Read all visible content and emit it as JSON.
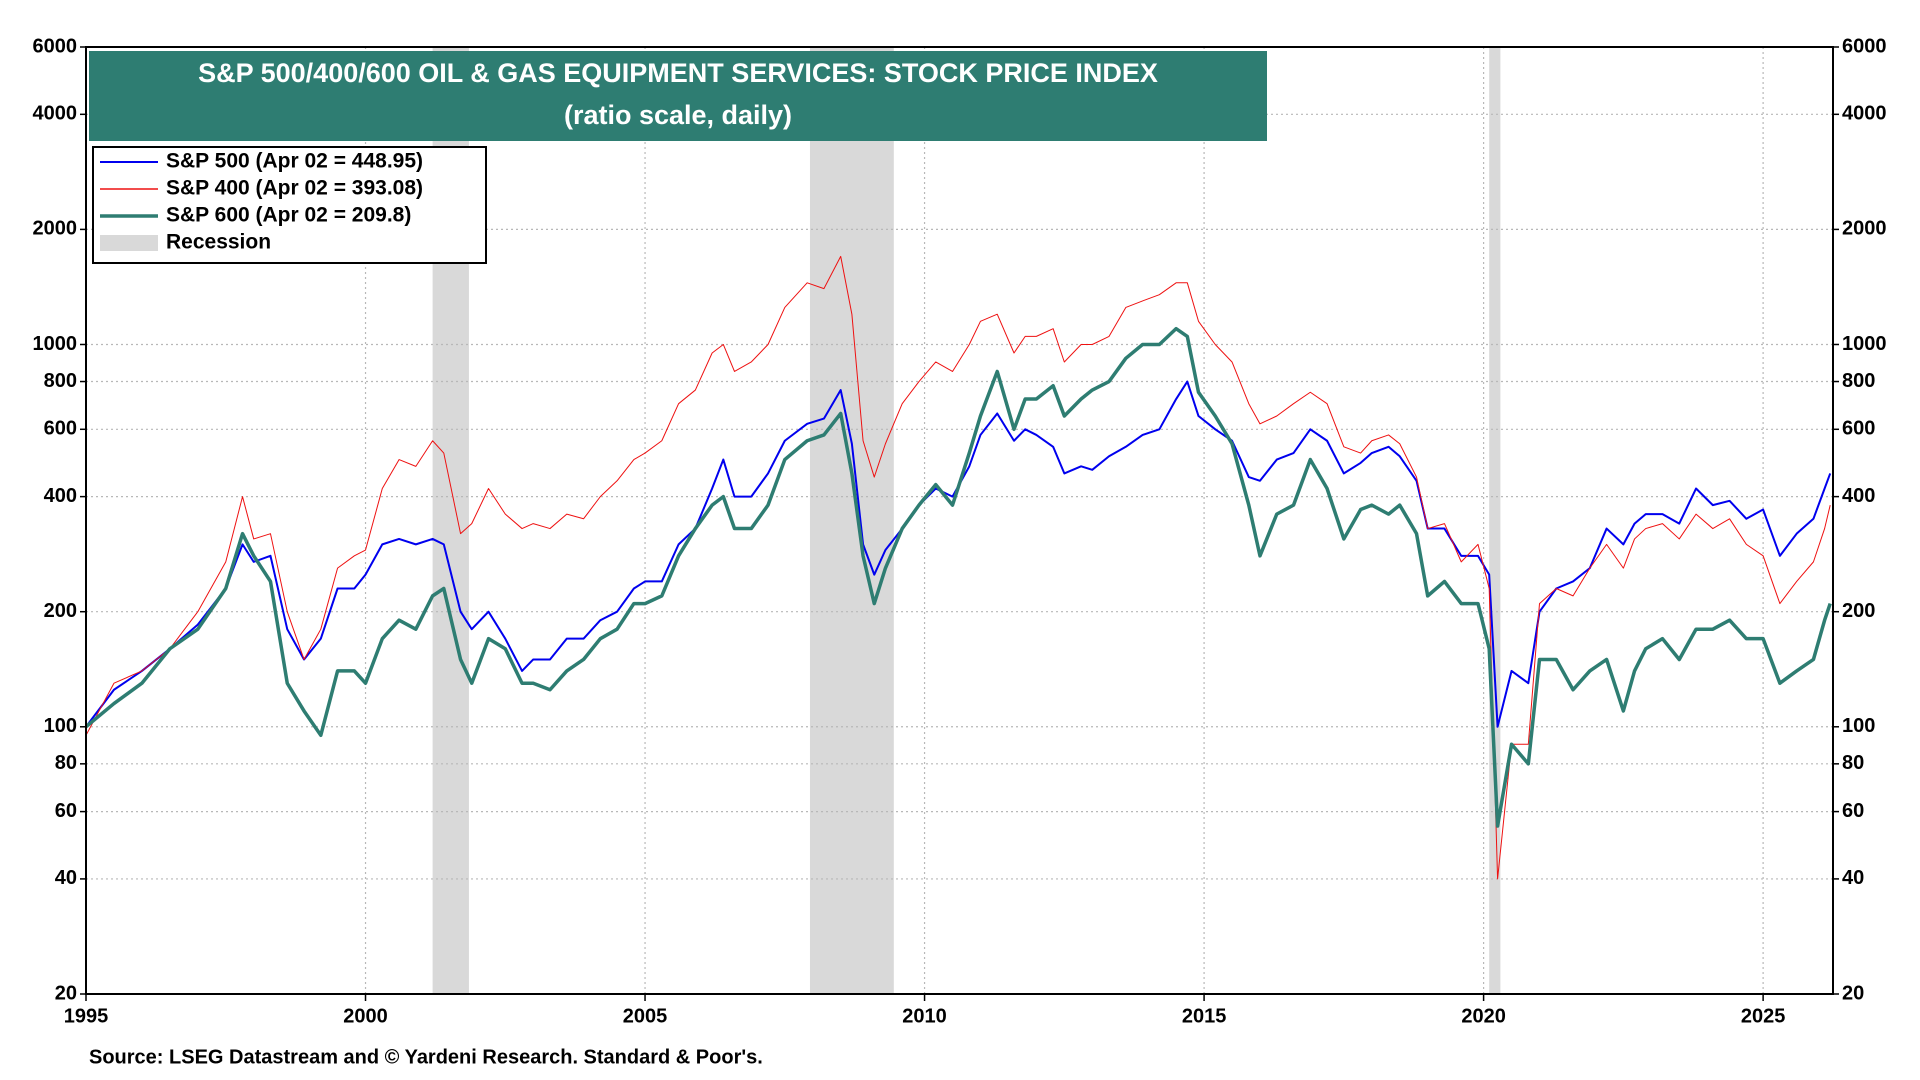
{
  "chart_data": {
    "type": "line",
    "title": "S&P 500/400/600 OIL & GAS EQUIPMENT SERVICES: STOCK PRICE INDEX",
    "subtitle": "(ratio scale, daily)",
    "source": "Source: LSEG Datastream and © Yardeni Research. Standard & Poor's.",
    "log_scale": true,
    "grid": true,
    "legend_position": "upper-left",
    "xlim": [
      1995,
      2026.25
    ],
    "xticks": [
      1995,
      2000,
      2005,
      2010,
      2015,
      2020,
      2025
    ],
    "ylim": [
      20,
      6000
    ],
    "yticks": [
      20,
      40,
      60,
      80,
      100,
      200,
      400,
      600,
      800,
      1000,
      2000,
      4000,
      6000
    ],
    "recession": {
      "name": "Recession",
      "color": "#d9d9d9",
      "periods": [
        [
          2001.2,
          2001.85
        ],
        [
          2007.95,
          2009.45
        ],
        [
          2020.1,
          2020.3
        ]
      ]
    },
    "x": [
      1995.0,
      1995.5,
      1996.0,
      1996.5,
      1997.0,
      1997.5,
      1997.8,
      1998.0,
      1998.3,
      1998.6,
      1998.9,
      1999.2,
      1999.5,
      1999.8,
      2000.0,
      2000.3,
      2000.6,
      2000.9,
      2001.2,
      2001.4,
      2001.7,
      2001.9,
      2002.2,
      2002.5,
      2002.8,
      2003.0,
      2003.3,
      2003.6,
      2003.9,
      2004.2,
      2004.5,
      2004.8,
      2005.0,
      2005.3,
      2005.6,
      2005.9,
      2006.2,
      2006.4,
      2006.6,
      2006.9,
      2007.2,
      2007.5,
      2007.9,
      2008.2,
      2008.5,
      2008.7,
      2008.9,
      2009.1,
      2009.3,
      2009.6,
      2009.9,
      2010.2,
      2010.5,
      2010.8,
      2011.0,
      2011.3,
      2011.6,
      2011.8,
      2012.0,
      2012.3,
      2012.5,
      2012.8,
      2013.0,
      2013.3,
      2013.6,
      2013.9,
      2014.2,
      2014.5,
      2014.7,
      2014.9,
      2015.2,
      2015.5,
      2015.8,
      2016.0,
      2016.3,
      2016.6,
      2016.9,
      2017.2,
      2017.5,
      2017.8,
      2018.0,
      2018.3,
      2018.5,
      2018.8,
      2019.0,
      2019.3,
      2019.6,
      2019.9,
      2020.1,
      2020.25,
      2020.5,
      2020.8,
      2021.0,
      2021.3,
      2021.6,
      2021.9,
      2022.2,
      2022.5,
      2022.7,
      2022.9,
      2023.2,
      2023.5,
      2023.8,
      2024.1,
      2024.4,
      2024.7,
      2025.0,
      2025.3,
      2025.6,
      2025.9,
      2026.1,
      2026.2
    ],
    "series": [
      {
        "name": "S&P 500 (Apr 02 = 448.95)",
        "color": "#0000ee",
        "width": 2,
        "values": [
          100,
          125,
          140,
          160,
          185,
          230,
          300,
          270,
          280,
          180,
          150,
          170,
          230,
          230,
          250,
          300,
          310,
          300,
          310,
          300,
          200,
          180,
          200,
          170,
          140,
          150,
          150,
          170,
          170,
          190,
          200,
          230,
          240,
          240,
          300,
          330,
          420,
          500,
          400,
          400,
          460,
          560,
          620,
          640,
          760,
          550,
          300,
          250,
          290,
          330,
          380,
          420,
          400,
          480,
          580,
          660,
          560,
          600,
          580,
          540,
          460,
          480,
          470,
          510,
          540,
          580,
          600,
          720,
          800,
          650,
          600,
          560,
          450,
          440,
          500,
          520,
          600,
          560,
          460,
          490,
          520,
          540,
          510,
          440,
          330,
          330,
          280,
          280,
          250,
          100,
          140,
          130,
          200,
          230,
          240,
          260,
          330,
          300,
          340,
          360,
          360,
          340,
          420,
          380,
          390,
          350,
          370,
          280,
          320,
          350,
          420,
          460
        ]
      },
      {
        "name": "S&P 400 (Apr 02 = 393.08)",
        "color": "#ee1111",
        "width": 1,
        "values": [
          95,
          130,
          140,
          160,
          200,
          270,
          400,
          310,
          320,
          200,
          150,
          180,
          260,
          280,
          290,
          420,
          500,
          480,
          560,
          520,
          320,
          340,
          420,
          360,
          330,
          340,
          330,
          360,
          350,
          400,
          440,
          500,
          520,
          560,
          700,
          760,
          950,
          1000,
          850,
          900,
          1000,
          1250,
          1450,
          1400,
          1700,
          1200,
          560,
          450,
          550,
          700,
          800,
          900,
          850,
          1000,
          1150,
          1200,
          950,
          1050,
          1050,
          1100,
          900,
          1000,
          1000,
          1050,
          1250,
          1300,
          1350,
          1450,
          1450,
          1150,
          1000,
          900,
          700,
          620,
          650,
          700,
          750,
          700,
          540,
          520,
          560,
          580,
          550,
          450,
          330,
          340,
          270,
          300,
          230,
          40,
          90,
          90,
          210,
          230,
          220,
          260,
          300,
          260,
          310,
          330,
          340,
          310,
          360,
          330,
          350,
          300,
          280,
          210,
          240,
          270,
          330,
          380
        ]
      },
      {
        "name": "S&P 600 (Apr 02 = 209.8)",
        "color": "#2e7d72",
        "width": 3.5,
        "values": [
          100,
          115,
          130,
          160,
          180,
          230,
          320,
          280,
          240,
          130,
          110,
          95,
          140,
          140,
          130,
          170,
          190,
          180,
          220,
          230,
          150,
          130,
          170,
          160,
          130,
          130,
          125,
          140,
          150,
          170,
          180,
          210,
          210,
          220,
          280,
          330,
          380,
          400,
          330,
          330,
          380,
          500,
          560,
          580,
          660,
          460,
          280,
          210,
          260,
          330,
          380,
          430,
          380,
          520,
          650,
          850,
          600,
          720,
          720,
          780,
          650,
          720,
          760,
          800,
          920,
          1000,
          1000,
          1100,
          1050,
          750,
          650,
          550,
          380,
          280,
          360,
          380,
          500,
          420,
          310,
          370,
          380,
          360,
          380,
          320,
          220,
          240,
          210,
          210,
          160,
          55,
          90,
          80,
          150,
          150,
          125,
          140,
          150,
          110,
          140,
          160,
          170,
          150,
          180,
          180,
          190,
          170,
          170,
          130,
          140,
          150,
          190,
          210
        ]
      }
    ]
  }
}
